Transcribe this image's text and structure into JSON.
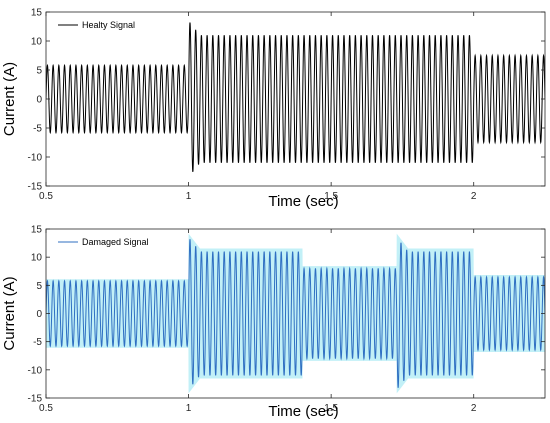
{
  "chart_data": [
    {
      "type": "line",
      "ylabel": "Current (A)",
      "xlabel": "Time (sec)",
      "xlim": [
        0.5,
        2.25
      ],
      "ylim": [
        -15,
        15
      ],
      "xticks": [
        "0.5",
        "1",
        "1.5",
        "2"
      ],
      "yticks": [
        "15",
        "10",
        "5",
        "0",
        "-5",
        "-10",
        "-15"
      ],
      "grid": false,
      "legend_position": "top-left",
      "series": [
        {
          "name": "Healty Signal",
          "color": "#000000",
          "signal": {
            "waveform": "sinusoid",
            "frequency_hz": 50,
            "segments": [
              {
                "t_start": 0.5,
                "t_end": 1.0,
                "amplitude": 5.8
              },
              {
                "t_start": 1.0,
                "t_end": 2.0,
                "amplitude": 11.0,
                "transient_peak": 13.5
              },
              {
                "t_start": 2.0,
                "t_end": 2.25,
                "amplitude": 7.5
              }
            ]
          }
        }
      ]
    },
    {
      "type": "line",
      "ylabel": "Current (A)",
      "xlabel": "Time (sec)",
      "xlim": [
        0.5,
        2.25
      ],
      "ylim": [
        -15,
        15
      ],
      "xticks": [
        "0.5",
        "1",
        "1.5",
        "2"
      ],
      "yticks": [
        "15",
        "10",
        "5",
        "0",
        "-5",
        "-10",
        "-15"
      ],
      "grid": false,
      "legend_position": "top-left",
      "series": [
        {
          "name": "Damaged Signal",
          "color": "#2f6fc2",
          "band_color": "#8fe3f0",
          "signal": {
            "waveform": "sinusoid",
            "frequency_hz": 50,
            "segments": [
              {
                "t_start": 0.5,
                "t_end": 1.0,
                "amplitude": 5.8
              },
              {
                "t_start": 1.0,
                "t_end": 1.4,
                "amplitude": 11.0,
                "transient_peak": 13.5
              },
              {
                "t_start": 1.4,
                "t_end": 1.73,
                "amplitude": 8.0
              },
              {
                "t_start": 1.73,
                "t_end": 2.0,
                "amplitude": 11.0,
                "transient_peak": 13.5
              },
              {
                "t_start": 2.0,
                "t_end": 2.25,
                "amplitude": 6.5
              }
            ]
          }
        }
      ]
    }
  ]
}
